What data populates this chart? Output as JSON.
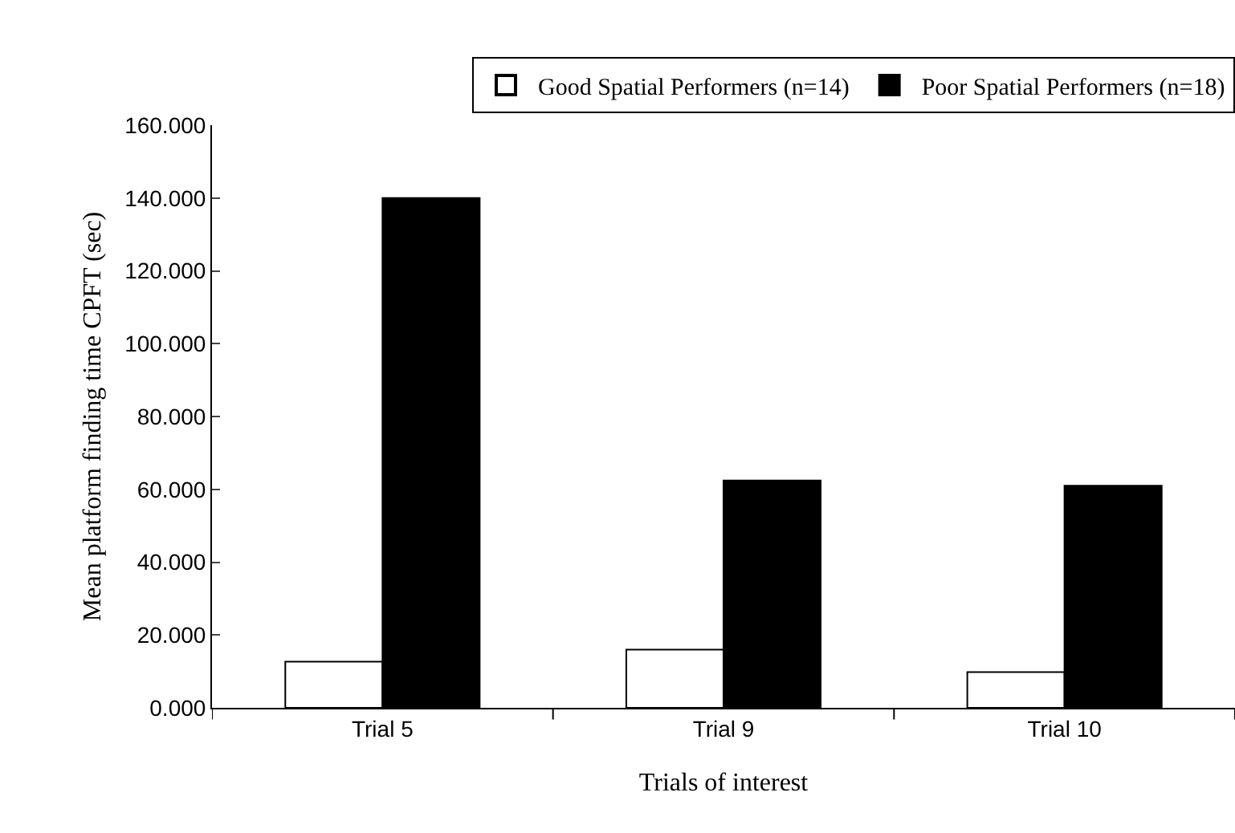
{
  "chart_data": {
    "type": "bar",
    "xlabel": "Trials of interest",
    "ylabel": "Mean platform finding time CPFT (sec)",
    "categories": [
      "Trial 5",
      "Trial 9",
      "Trial 10"
    ],
    "series": [
      {
        "name": "Good Spatial Performers (n=14)",
        "color": "#ffffff",
        "values": [
          12.7,
          16.0,
          9.8
        ]
      },
      {
        "name": "Poor Spatial Performers (n=18)",
        "color": "#000000",
        "values": [
          140,
          62.4,
          61.0
        ]
      }
    ],
    "ylim": [
      0,
      160
    ],
    "yticks": [
      {
        "value": 0,
        "label": "0.000"
      },
      {
        "value": 20,
        "label": "20.000"
      },
      {
        "value": 40,
        "label": "40.000"
      },
      {
        "value": 60,
        "label": "60.000"
      },
      {
        "value": 80,
        "label": "80.000"
      },
      {
        "value": 100,
        "label": "100.000"
      },
      {
        "value": 120,
        "label": "120.000"
      },
      {
        "value": 140,
        "label": "140.000"
      },
      {
        "value": 160,
        "label": "160.000"
      }
    ],
    "legend": "top"
  }
}
